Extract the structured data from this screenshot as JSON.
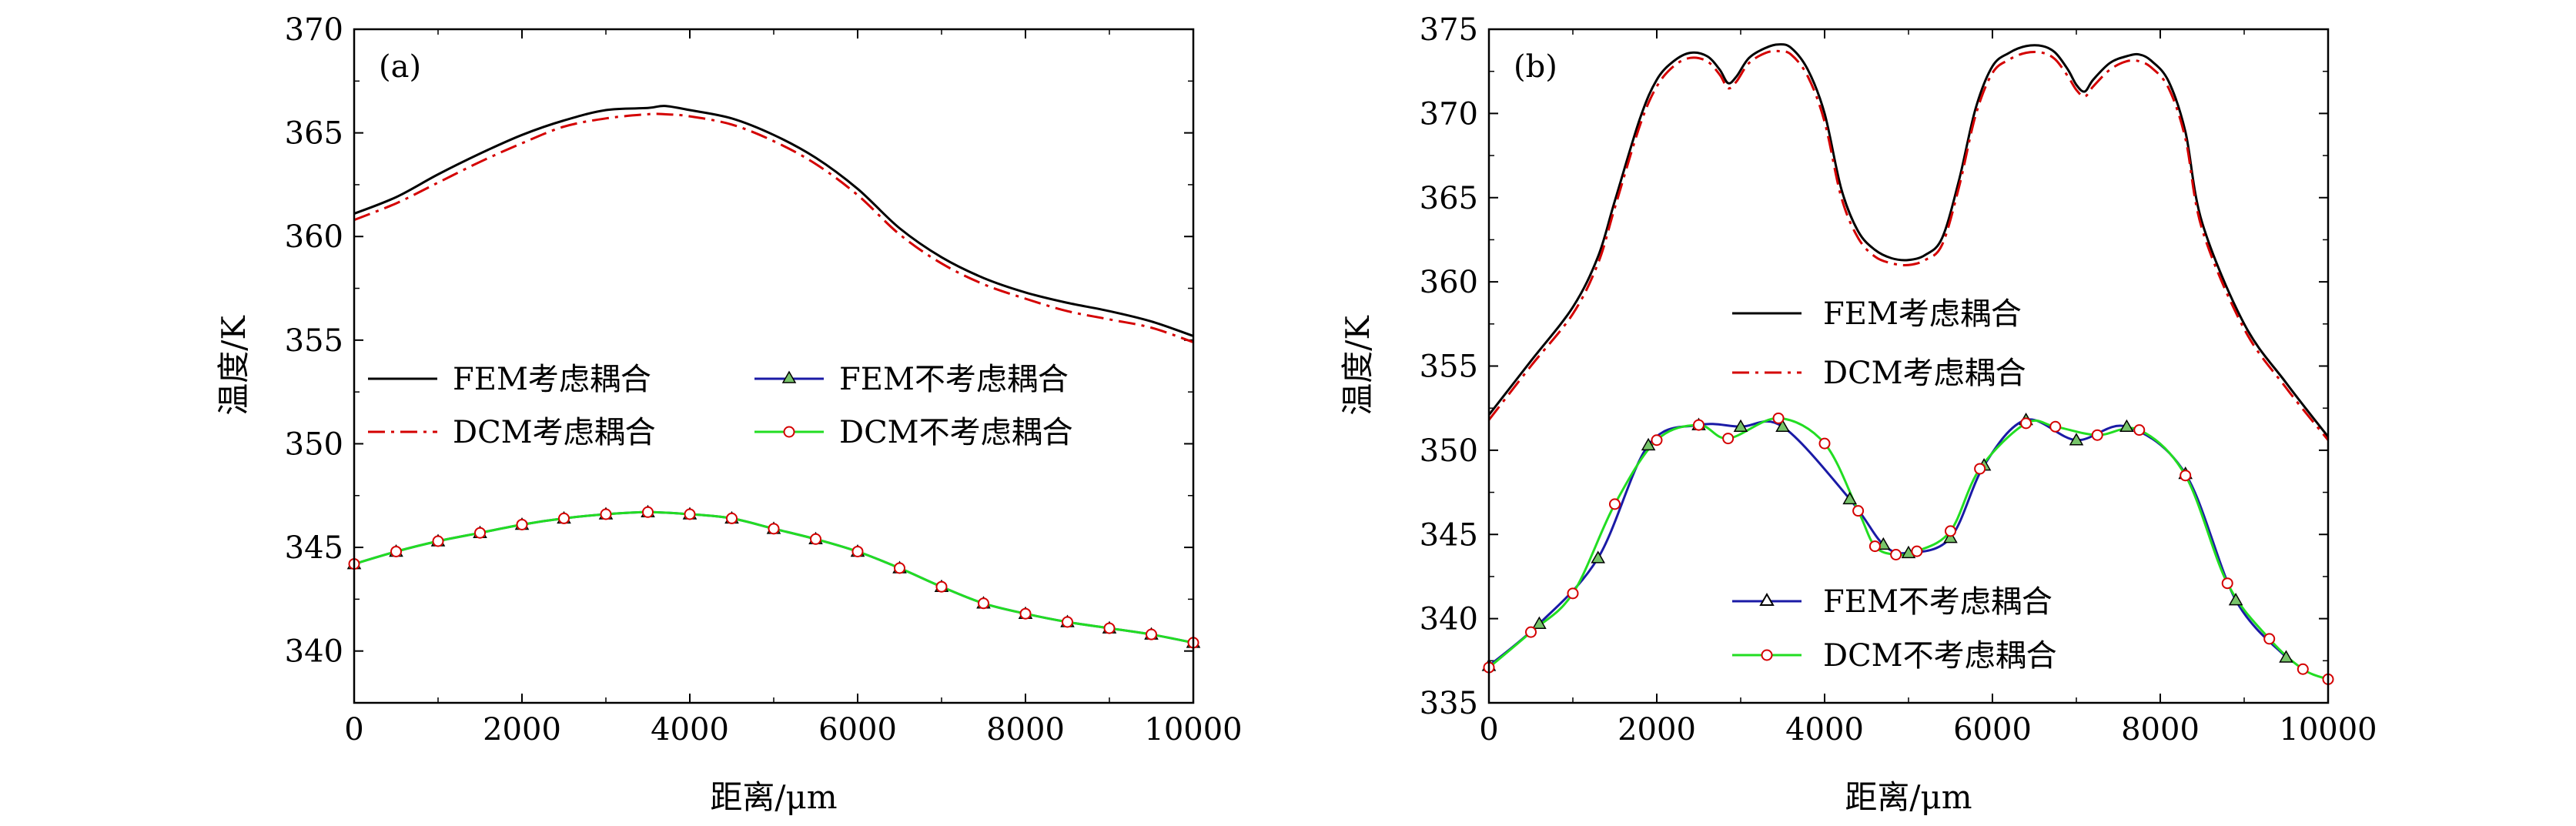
{
  "colors": {
    "fem_coupled": "#000000",
    "dcm_coupled": "#d40000",
    "fem_uncoupled": "#1a1aa6",
    "dcm_uncoupled": "#22dd22",
    "marker_triangle_fill": "#77c46a",
    "marker_circle_stroke": "#d40000"
  },
  "chart_data": [
    {
      "type": "line",
      "panel_label": "(a)",
      "xlabel": "距离/μm",
      "ylabel": "温度/K",
      "xlim": [
        0,
        10000
      ],
      "ylim": [
        337.5,
        370
      ],
      "xticks": [
        0,
        2000,
        4000,
        6000,
        8000,
        10000
      ],
      "yticks": [
        340,
        345,
        350,
        355,
        360,
        365,
        370
      ],
      "legend_placement": "center",
      "series": [
        {
          "name": "FEM考虑耦合",
          "style": "solid",
          "color_key": "fem_coupled",
          "marker": "none",
          "x": [
            0,
            500,
            1000,
            1500,
            2000,
            2500,
            3000,
            3500,
            3700,
            4000,
            4500,
            5000,
            5500,
            6000,
            6500,
            7000,
            7500,
            8000,
            8500,
            9000,
            9500,
            10000
          ],
          "y": [
            361.1,
            361.9,
            363.0,
            364.0,
            364.9,
            365.6,
            366.1,
            366.2,
            366.3,
            366.1,
            365.7,
            364.9,
            363.8,
            362.3,
            360.4,
            359.0,
            358.0,
            357.3,
            356.8,
            356.4,
            355.9,
            355.2
          ]
        },
        {
          "name": "DCM考虑耦合",
          "style": "dashdot",
          "color_key": "dcm_coupled",
          "marker": "none",
          "x": [
            0,
            500,
            1000,
            1500,
            2000,
            2500,
            3000,
            3500,
            3700,
            4000,
            4500,
            5000,
            5500,
            6000,
            6500,
            7000,
            7500,
            8000,
            8500,
            9000,
            9500,
            10000
          ],
          "y": [
            360.8,
            361.6,
            362.6,
            363.6,
            364.5,
            365.3,
            365.7,
            365.9,
            365.9,
            365.8,
            365.4,
            364.6,
            363.5,
            362.0,
            360.1,
            358.7,
            357.7,
            357.0,
            356.4,
            356.0,
            355.6,
            354.9
          ]
        },
        {
          "name": "FEM不考虑耦合",
          "style": "solid",
          "color_key": "fem_uncoupled",
          "marker": "triangle",
          "x": [
            0,
            500,
            1000,
            1500,
            2000,
            2500,
            3000,
            3500,
            4000,
            4500,
            5000,
            5500,
            6000,
            6500,
            7000,
            7500,
            8000,
            8500,
            9000,
            9500,
            10000
          ],
          "y": [
            344.2,
            344.8,
            345.3,
            345.7,
            346.1,
            346.4,
            346.6,
            346.7,
            346.6,
            346.4,
            345.9,
            345.4,
            344.8,
            344.0,
            343.1,
            342.3,
            341.8,
            341.4,
            341.1,
            340.8,
            340.4
          ]
        },
        {
          "name": "DCM不考虑耦合",
          "style": "solid",
          "color_key": "dcm_uncoupled",
          "marker": "circle",
          "x": [
            0,
            500,
            1000,
            1500,
            2000,
            2500,
            3000,
            3500,
            4000,
            4500,
            5000,
            5500,
            6000,
            6500,
            7000,
            7500,
            8000,
            8500,
            9000,
            9500,
            10000
          ],
          "y": [
            344.2,
            344.8,
            345.3,
            345.7,
            346.1,
            346.4,
            346.6,
            346.7,
            346.6,
            346.4,
            345.9,
            345.4,
            344.8,
            344.0,
            343.1,
            342.3,
            341.8,
            341.4,
            341.1,
            340.8,
            340.4
          ]
        }
      ]
    },
    {
      "type": "line",
      "panel_label": "(b)",
      "xlabel": "距离/μm",
      "ylabel": "温度/K",
      "xlim": [
        0,
        10000
      ],
      "ylim": [
        335,
        375
      ],
      "xticks": [
        0,
        2000,
        4000,
        6000,
        8000,
        10000
      ],
      "yticks": [
        335,
        340,
        345,
        350,
        355,
        360,
        365,
        370,
        375
      ],
      "legend_placement": "center-left, split",
      "series": [
        {
          "name": "FEM考虑耦合",
          "style": "solid",
          "color_key": "fem_coupled",
          "marker": "none",
          "x": [
            0,
            500,
            1000,
            1300,
            1500,
            1800,
            2000,
            2200,
            2400,
            2600,
            2750,
            2850,
            2950,
            3100,
            3300,
            3450,
            3600,
            3800,
            4000,
            4200,
            4400,
            4600,
            4800,
            5000,
            5200,
            5400,
            5600,
            5800,
            6000,
            6200,
            6400,
            6600,
            6750,
            6900,
            7000,
            7100,
            7200,
            7400,
            7600,
            7750,
            7900,
            8100,
            8300,
            8500,
            9000,
            9500,
            10000
          ],
          "y": [
            352.1,
            355.3,
            358.5,
            361.5,
            364.8,
            369.7,
            372.0,
            373.1,
            373.6,
            373.4,
            372.6,
            371.8,
            372.2,
            373.3,
            373.9,
            374.1,
            373.9,
            372.6,
            370.0,
            365.5,
            363.0,
            361.9,
            361.4,
            361.3,
            361.6,
            362.6,
            366.0,
            370.3,
            372.8,
            373.6,
            374.0,
            374.0,
            373.6,
            372.6,
            371.7,
            371.3,
            372.0,
            373.0,
            373.4,
            373.5,
            373.1,
            371.9,
            368.9,
            363.5,
            357.5,
            354.0,
            350.8
          ]
        },
        {
          "name": "DCM考虑耦合",
          "style": "dashdot",
          "color_key": "dcm_coupled",
          "marker": "none",
          "x": [
            0,
            500,
            1000,
            1300,
            1500,
            1800,
            2000,
            2200,
            2400,
            2600,
            2750,
            2850,
            2950,
            3100,
            3300,
            3450,
            3600,
            3800,
            4000,
            4200,
            4400,
            4600,
            4800,
            5000,
            5200,
            5400,
            5600,
            5800,
            6000,
            6200,
            6400,
            6600,
            6750,
            6900,
            7000,
            7100,
            7200,
            7400,
            7600,
            7750,
            7900,
            8100,
            8300,
            8500,
            9000,
            9500,
            10000
          ],
          "y": [
            351.8,
            355.0,
            358.1,
            361.1,
            364.4,
            369.3,
            371.6,
            372.8,
            373.3,
            373.1,
            372.3,
            371.5,
            371.9,
            373.0,
            373.6,
            373.7,
            373.5,
            372.2,
            369.5,
            365.0,
            362.6,
            361.5,
            361.1,
            361.0,
            361.3,
            362.2,
            365.6,
            369.9,
            372.4,
            373.2,
            373.6,
            373.6,
            373.2,
            372.2,
            371.4,
            371.0,
            371.6,
            372.6,
            373.1,
            373.1,
            372.7,
            371.5,
            368.5,
            363.1,
            357.2,
            353.7,
            350.6
          ]
        },
        {
          "name": "FEM不考虑耦合",
          "style": "solid",
          "color_key": "fem_uncoupled",
          "marker": "triangle",
          "x": [
            0,
            600,
            1300,
            1900,
            2500,
            3000,
            3500,
            4300,
            4700,
            5000,
            5500,
            5900,
            6400,
            7000,
            7600,
            8300,
            8900,
            9500
          ],
          "y": [
            337.2,
            339.7,
            343.6,
            350.3,
            351.5,
            351.4,
            351.4,
            347.1,
            344.4,
            343.9,
            344.8,
            349.1,
            351.8,
            350.6,
            351.4,
            348.6,
            341.1,
            337.7
          ]
        },
        {
          "name": "DCM不考虑耦合",
          "style": "solid",
          "color_key": "dcm_uncoupled",
          "marker": "circle",
          "x": [
            0,
            500,
            1000,
            1500,
            2000,
            2500,
            2850,
            3450,
            4000,
            4400,
            4600,
            4850,
            5100,
            5500,
            5850,
            6400,
            6750,
            7250,
            7750,
            8300,
            8800,
            9300,
            9700,
            10000
          ],
          "y": [
            337.1,
            339.2,
            341.5,
            346.8,
            350.6,
            351.5,
            350.7,
            351.9,
            350.4,
            346.4,
            344.3,
            343.8,
            344.0,
            345.2,
            348.9,
            351.6,
            351.4,
            350.9,
            351.2,
            348.5,
            342.1,
            338.8,
            337.0,
            336.4
          ]
        }
      ]
    }
  ]
}
